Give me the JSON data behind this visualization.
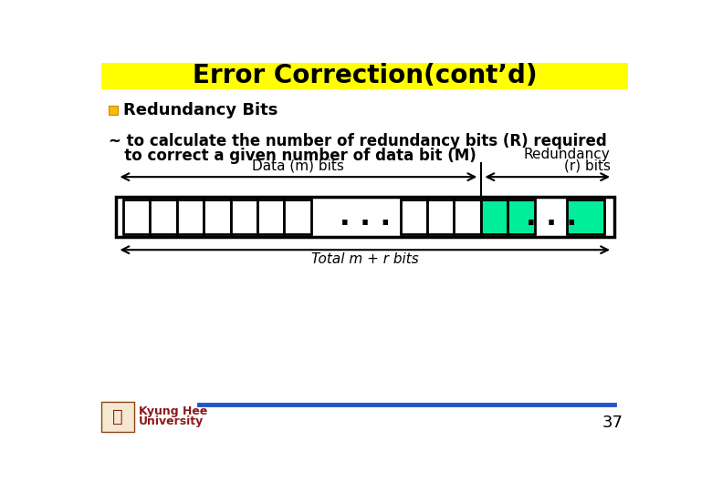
{
  "title": "Error Correction(cont’d)",
  "title_bg": "#FFFF00",
  "title_fontsize": 20,
  "bullet_text": "Redundancy Bits",
  "body_line1": "~ to calculate the number of redundancy bits (R) required",
  "body_line2": "   to correct a given number of data bit (M)",
  "bg_color": "#FFFFFF",
  "footer_text_1": "Kyung Hee",
  "footer_text_2": "University",
  "page_number": "37",
  "blue_line_color": "#2255CC",
  "box_color_white": "#FFFFFF",
  "box_color_green": "#00EE99",
  "box_stroke": "#000000",
  "data_label": "Data (m) bits",
  "redundancy_label_1": "Redundancy",
  "redundancy_label_2": "(r) bits",
  "total_label": "Total m + r bits"
}
